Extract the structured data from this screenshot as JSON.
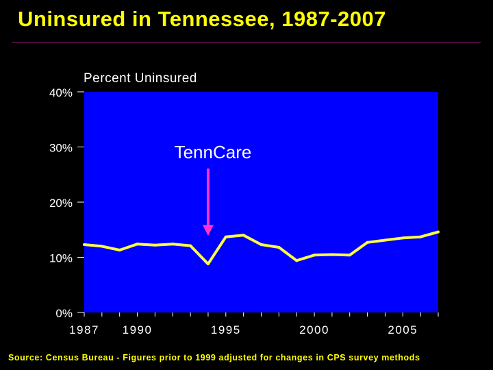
{
  "title": "Uninsured in Tennessee, 1987-2007",
  "footnote": "Source: Census Bureau - Figures prior to 1999 adjusted for changes in CPS survey methods",
  "colors": {
    "background": "#000000",
    "plot_area": "#0000FF",
    "line": "#FFFF40",
    "title": "#FFFF00",
    "axis_text": "#FFFFFF",
    "annotation_arrow": "#FF33CC"
  },
  "chart_data": {
    "type": "line",
    "title": "Uninsured in Tennessee, 1987-2007",
    "ylabel": "Percent Uninsured",
    "xlabel": "",
    "xlim": [
      1987,
      2007
    ],
    "ylim": [
      0,
      40
    ],
    "x_ticks": [
      1987,
      1990,
      1995,
      2000,
      2005
    ],
    "y_ticks": [
      {
        "value": 0,
        "label": "0%"
      },
      {
        "value": 10,
        "label": "10%"
      },
      {
        "value": 20,
        "label": "20%"
      },
      {
        "value": 30,
        "label": "30%"
      },
      {
        "value": 40,
        "label": "40%"
      }
    ],
    "grid": false,
    "legend": "none",
    "x": [
      1987,
      1988,
      1989,
      1990,
      1991,
      1992,
      1993,
      1994,
      1995,
      1996,
      1997,
      1998,
      1999,
      2000,
      2001,
      2002,
      2003,
      2004,
      2005,
      2006,
      2007
    ],
    "series": [
      {
        "values": [
          12.3,
          12.0,
          11.3,
          12.4,
          12.2,
          12.4,
          12.1,
          8.8,
          13.7,
          14.0,
          12.3,
          11.8,
          9.4,
          10.4,
          10.5,
          10.4,
          12.7,
          13.1,
          13.5,
          13.7,
          14.6
        ]
      }
    ],
    "annotations": [
      {
        "text": "TennCare",
        "x": 1994,
        "arrow_to_y": 14
      }
    ]
  }
}
